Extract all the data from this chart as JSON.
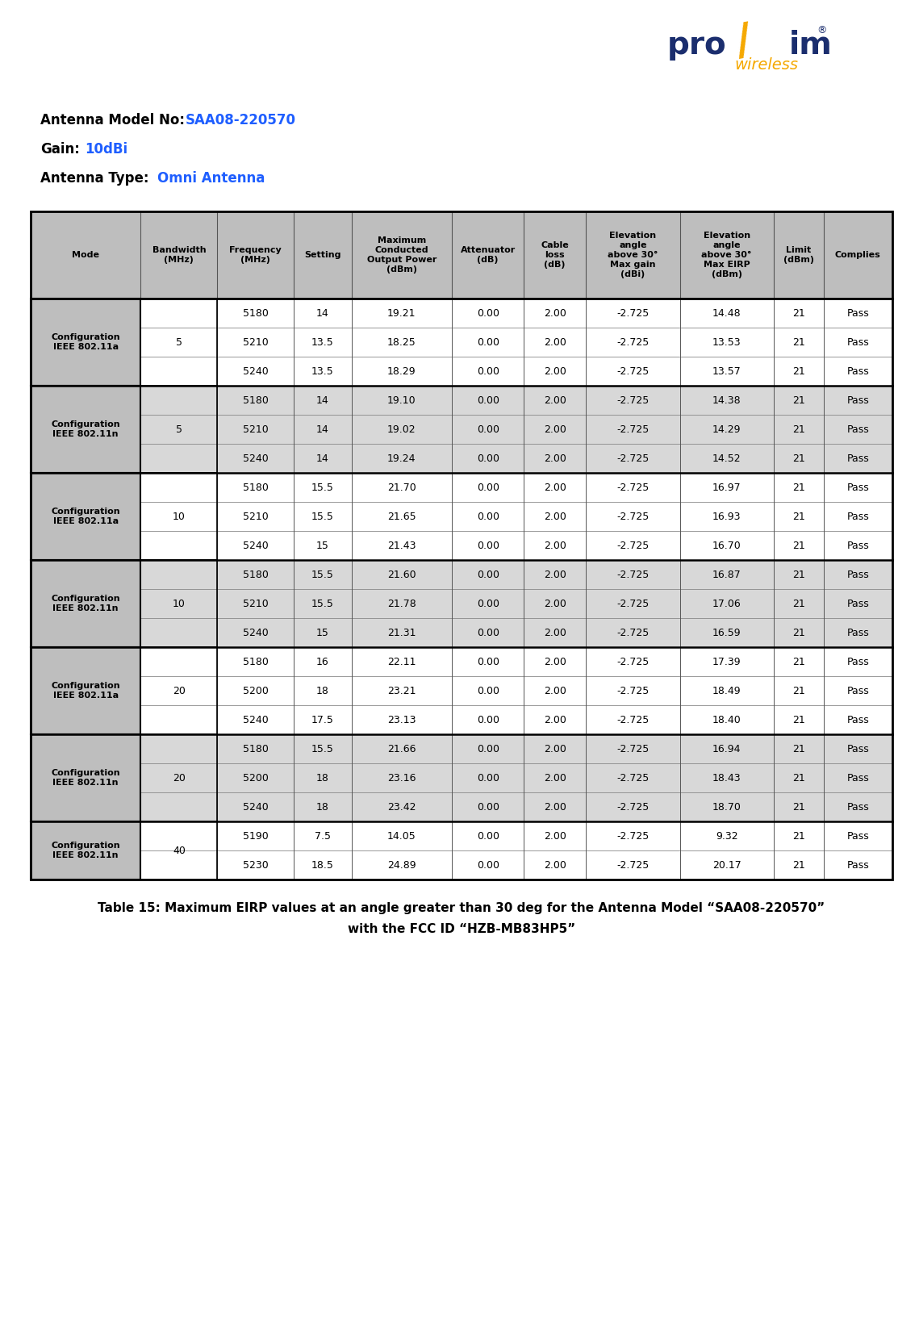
{
  "antenna_model_label": "Antenna Model No:",
  "antenna_model_value": "SAA08-220570",
  "gain_label": "Gain:",
  "gain_value": "10dBi",
  "type_label": "Antenna Type:",
  "type_value": "Omni Antenna",
  "caption_line1": "Table 15: Maximum EIRP values at an angle greater than 30 deg for the Antenna Model “SAA08-220570”",
  "caption_line2": "with the FCC ID “HZB-MB83HP5”",
  "header_bg": "#BEBEBE",
  "row_bg_white": "#FFFFFF",
  "row_bg_gray": "#D8D8D8",
  "mode_col_bg": "#BEBEBE",
  "bw_col_bg": "#FFFFFF",
  "table_border": "#000000",
  "label_color": "#000000",
  "value_color": "#1E5EFF",
  "logo_blue": "#1B2E6E",
  "logo_orange": "#F5A800",
  "col_headers": [
    "Mode",
    "Bandwidth\n(MHz)",
    "Frequency\n(MHz)",
    "Setting",
    "Maximum\nConducted\nOutput Power\n(dBm)",
    "Attenuator\n(dB)",
    "Cable\nloss\n(dB)",
    "Elevation\nangle\nabove 30°\nMax gain\n(dBi)",
    "Elevation\nangle\nabove 30°\nMax EIRP\n(dBm)",
    "Limit\n(dBm)",
    "Complies"
  ],
  "rows": [
    [
      "Configuration\nIEEE 802.11a",
      "5",
      "5180",
      "14",
      "19.21",
      "0.00",
      "2.00",
      "-2.725",
      "14.48",
      "21",
      "Pass"
    ],
    [
      "",
      "",
      "5210",
      "13.5",
      "18.25",
      "0.00",
      "2.00",
      "-2.725",
      "13.53",
      "21",
      "Pass"
    ],
    [
      "",
      "",
      "5240",
      "13.5",
      "18.29",
      "0.00",
      "2.00",
      "-2.725",
      "13.57",
      "21",
      "Pass"
    ],
    [
      "Configuration\nIEEE 802.11n",
      "5",
      "5180",
      "14",
      "19.10",
      "0.00",
      "2.00",
      "-2.725",
      "14.38",
      "21",
      "Pass"
    ],
    [
      "",
      "",
      "5210",
      "14",
      "19.02",
      "0.00",
      "2.00",
      "-2.725",
      "14.29",
      "21",
      "Pass"
    ],
    [
      "",
      "",
      "5240",
      "14",
      "19.24",
      "0.00",
      "2.00",
      "-2.725",
      "14.52",
      "21",
      "Pass"
    ],
    [
      "Configuration\nIEEE 802.11a",
      "10",
      "5180",
      "15.5",
      "21.70",
      "0.00",
      "2.00",
      "-2.725",
      "16.97",
      "21",
      "Pass"
    ],
    [
      "",
      "",
      "5210",
      "15.5",
      "21.65",
      "0.00",
      "2.00",
      "-2.725",
      "16.93",
      "21",
      "Pass"
    ],
    [
      "",
      "",
      "5240",
      "15",
      "21.43",
      "0.00",
      "2.00",
      "-2.725",
      "16.70",
      "21",
      "Pass"
    ],
    [
      "Configuration\nIEEE 802.11n",
      "10",
      "5180",
      "15.5",
      "21.60",
      "0.00",
      "2.00",
      "-2.725",
      "16.87",
      "21",
      "Pass"
    ],
    [
      "",
      "",
      "5210",
      "15.5",
      "21.78",
      "0.00",
      "2.00",
      "-2.725",
      "17.06",
      "21",
      "Pass"
    ],
    [
      "",
      "",
      "5240",
      "15",
      "21.31",
      "0.00",
      "2.00",
      "-2.725",
      "16.59",
      "21",
      "Pass"
    ],
    [
      "Configuration\nIEEE 802.11a",
      "20",
      "5180",
      "16",
      "22.11",
      "0.00",
      "2.00",
      "-2.725",
      "17.39",
      "21",
      "Pass"
    ],
    [
      "",
      "",
      "5200",
      "18",
      "23.21",
      "0.00",
      "2.00",
      "-2.725",
      "18.49",
      "21",
      "Pass"
    ],
    [
      "",
      "",
      "5240",
      "17.5",
      "23.13",
      "0.00",
      "2.00",
      "-2.725",
      "18.40",
      "21",
      "Pass"
    ],
    [
      "Configuration\nIEEE 802.11n",
      "20",
      "5180",
      "15.5",
      "21.66",
      "0.00",
      "2.00",
      "-2.725",
      "16.94",
      "21",
      "Pass"
    ],
    [
      "",
      "",
      "5200",
      "18",
      "23.16",
      "0.00",
      "2.00",
      "-2.725",
      "18.43",
      "21",
      "Pass"
    ],
    [
      "",
      "",
      "5240",
      "18",
      "23.42",
      "0.00",
      "2.00",
      "-2.725",
      "18.70",
      "21",
      "Pass"
    ],
    [
      "Configuration\nIEEE 802.11n",
      "40",
      "5190",
      "7.5",
      "14.05",
      "0.00",
      "2.00",
      "-2.725",
      "9.32",
      "21",
      "Pass"
    ],
    [
      "",
      "",
      "5230",
      "18.5",
      "24.89",
      "0.00",
      "2.00",
      "-2.725",
      "20.17",
      "21",
      "Pass"
    ]
  ],
  "group_boundaries": [
    0,
    3,
    6,
    9,
    12,
    15,
    18,
    20
  ],
  "col_widths_ratio": [
    115,
    80,
    80,
    60,
    105,
    75,
    65,
    98,
    98,
    52,
    72
  ]
}
